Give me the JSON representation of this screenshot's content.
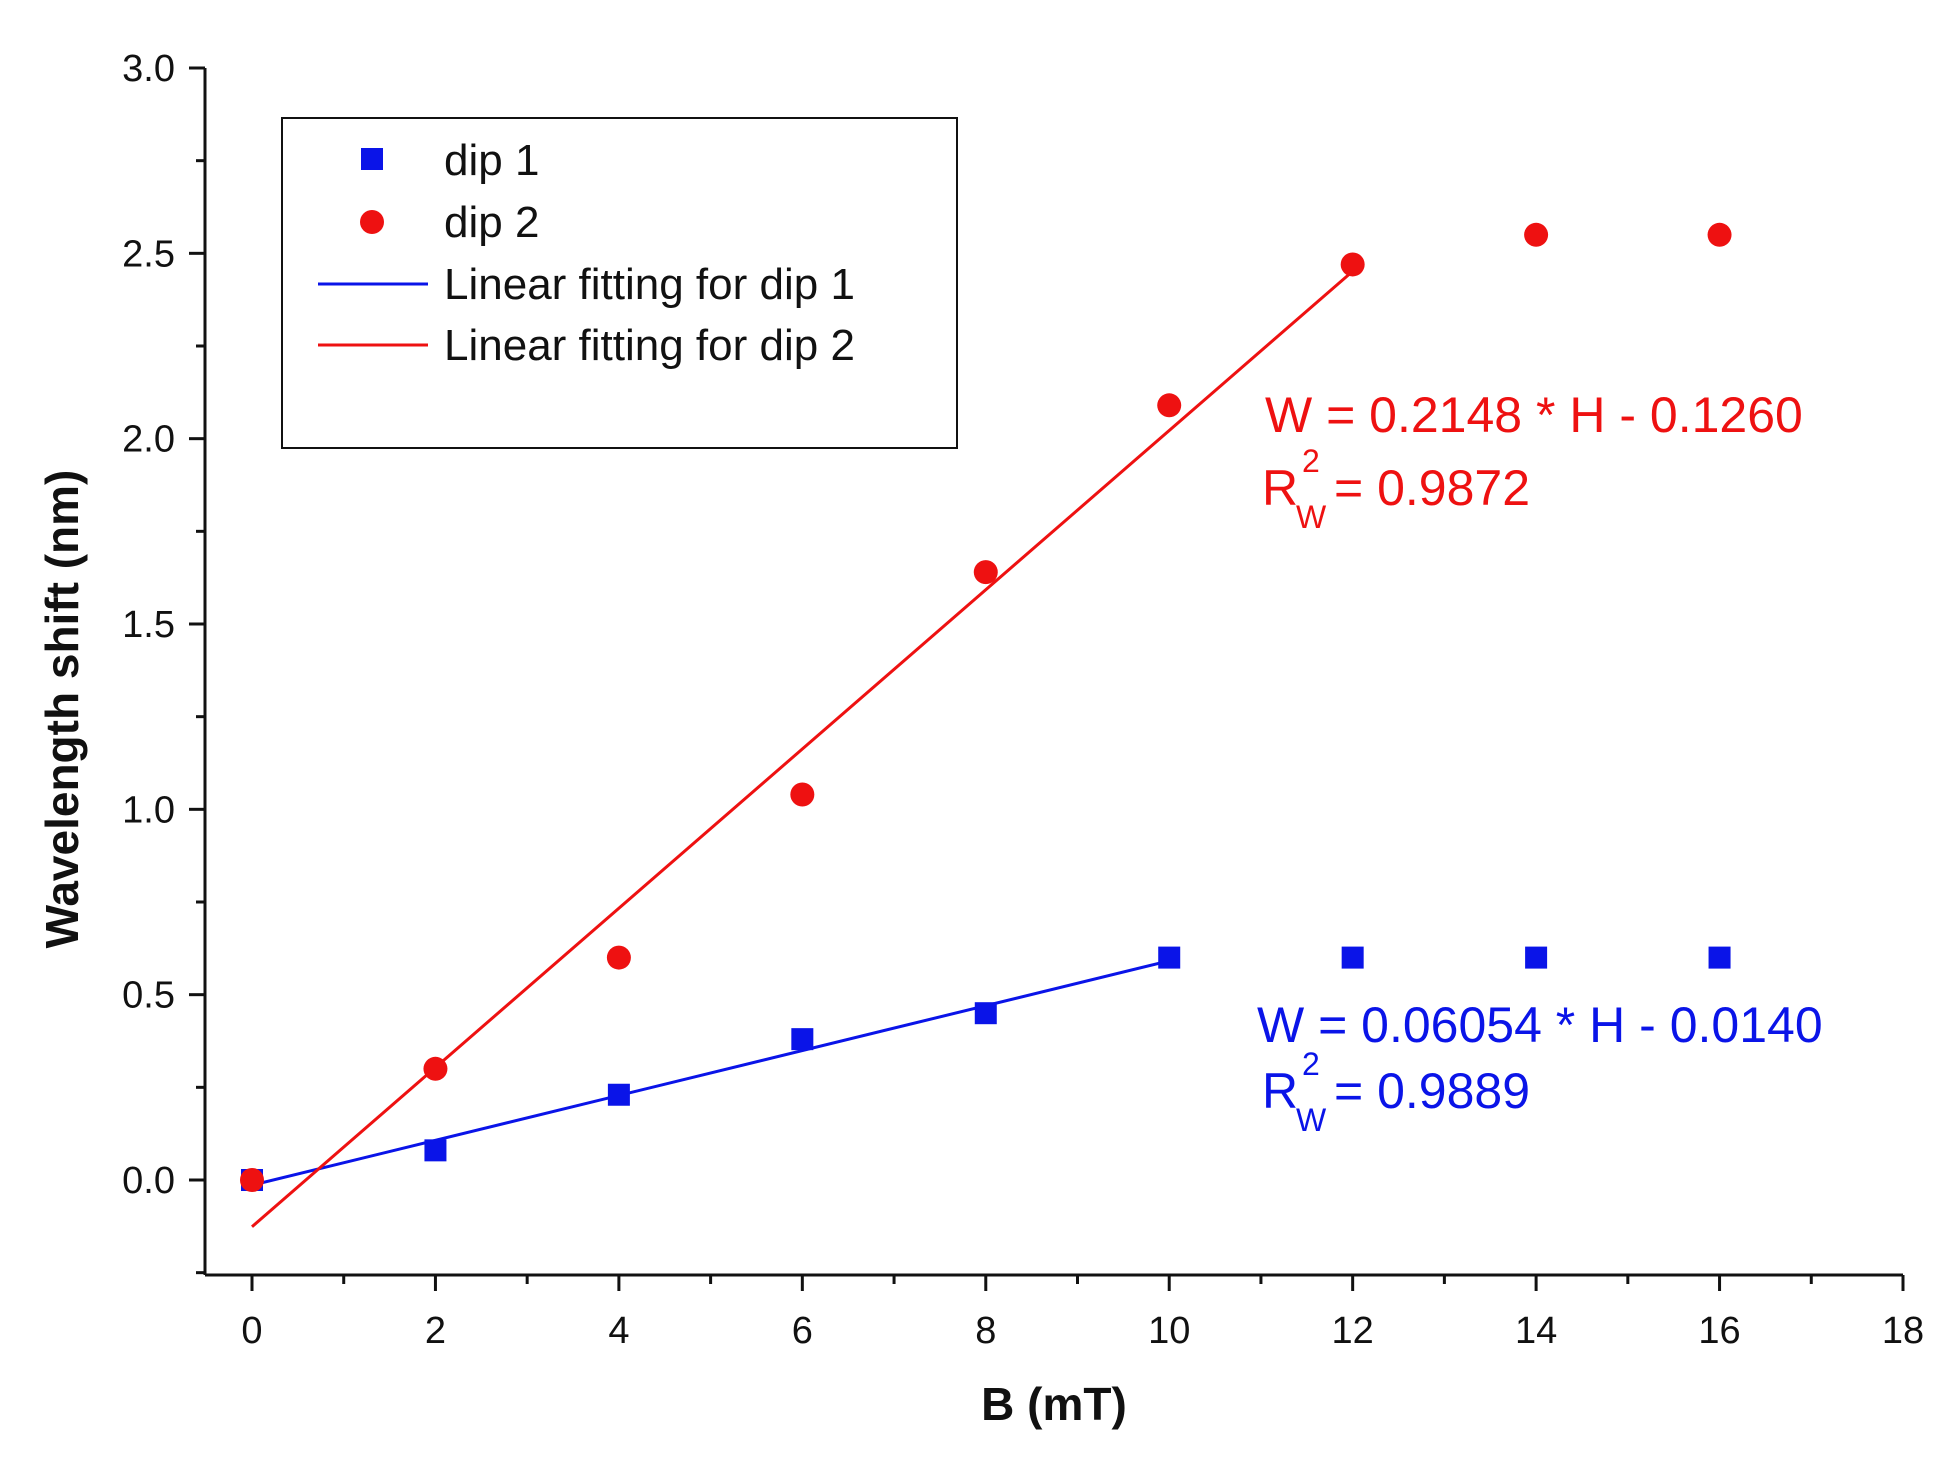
{
  "chart_data": {
    "type": "scatter",
    "title": "",
    "xlabel": "B (mT)",
    "ylabel": "Wavelength shift (nm)",
    "xlim": [
      -0.5,
      18
    ],
    "ylim": [
      -0.25,
      3.0
    ],
    "xticks": [
      0,
      2,
      4,
      6,
      8,
      10,
      12,
      14,
      16,
      18
    ],
    "xtick_labels": [
      "0",
      "2",
      "4",
      "6",
      "8",
      "10",
      "12",
      "14",
      "16",
      "18"
    ],
    "yticks": [
      0.0,
      0.5,
      1.0,
      1.5,
      2.0,
      2.5,
      3.0
    ],
    "ytick_labels": [
      "0.0",
      "0.5",
      "1.0",
      "1.5",
      "2.0",
      "2.5",
      "3.0"
    ],
    "grid": false,
    "legend_position": "top-left",
    "series": [
      {
        "name": "dip 1",
        "marker": "square",
        "color": "#0a14e8",
        "x": [
          0,
          2,
          4,
          6,
          8,
          10,
          12,
          14,
          16
        ],
        "y": [
          0.0,
          0.08,
          0.23,
          0.38,
          0.45,
          0.6,
          0.6,
          0.6,
          0.6
        ]
      },
      {
        "name": "dip 2",
        "marker": "circle",
        "color": "#ee1111",
        "x": [
          0,
          2,
          4,
          6,
          8,
          10,
          12,
          14,
          16
        ],
        "y": [
          0.0,
          0.3,
          0.6,
          1.04,
          1.64,
          2.09,
          2.47,
          2.55,
          2.55
        ]
      }
    ],
    "fits": [
      {
        "name": "Linear fitting for dip 1",
        "color": "#0a14e8",
        "slope": 0.06054,
        "intercept": -0.014,
        "x_range": [
          0,
          10
        ]
      },
      {
        "name": "Linear fitting for dip 2",
        "color": "#ee1111",
        "slope": 0.2148,
        "intercept": -0.126,
        "x_range": [
          0,
          12
        ]
      }
    ],
    "annotations": [
      {
        "color": "#ee1111",
        "equation": "W = 0.2148 * H - 0.1260",
        "r_main": "R",
        "r_sup": "2",
        "r_sub": "W",
        "r_value": "= 0.9872"
      },
      {
        "color": "#0a14e8",
        "equation": "W = 0.06054 * H - 0.0140",
        "r_main": "R",
        "r_sup": "2",
        "r_sub": "W",
        "r_value": "= 0.9889"
      }
    ]
  }
}
